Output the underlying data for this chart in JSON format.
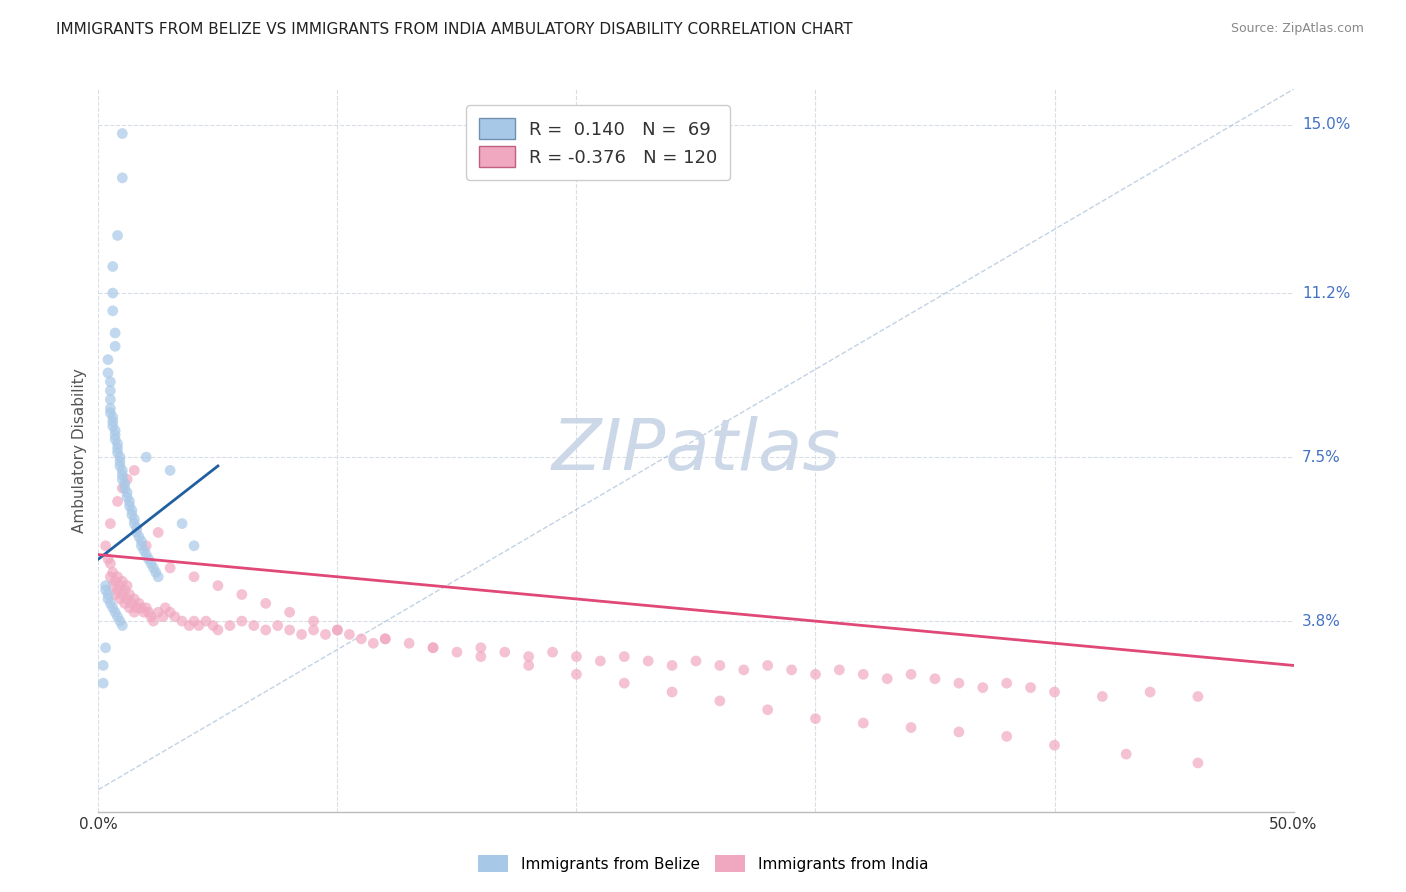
{
  "title": "IMMIGRANTS FROM BELIZE VS IMMIGRANTS FROM INDIA AMBULATORY DISABILITY CORRELATION CHART",
  "source": "Source: ZipAtlas.com",
  "ylabel": "Ambulatory Disability",
  "ytick_labels": [
    "15.0%",
    "11.2%",
    "7.5%",
    "3.8%"
  ],
  "ytick_values": [
    0.15,
    0.112,
    0.075,
    0.038
  ],
  "xlim": [
    0.0,
    0.5
  ],
  "ylim": [
    -0.005,
    0.158
  ],
  "belize_R": 0.14,
  "belize_N": 69,
  "india_R": -0.376,
  "india_N": 120,
  "belize_color": "#a8c8e8",
  "india_color": "#f0a8c0",
  "belize_line_color": "#2060a0",
  "india_line_color": "#e04878",
  "dashed_line_color": "#a8c0d8",
  "background_color": "#ffffff",
  "grid_color": "#d8dde8",
  "watermark_color": "#ccd8e8",
  "belize_scatter_x": [
    0.01,
    0.01,
    0.008,
    0.006,
    0.006,
    0.006,
    0.007,
    0.007,
    0.004,
    0.004,
    0.005,
    0.005,
    0.005,
    0.005,
    0.005,
    0.006,
    0.006,
    0.006,
    0.007,
    0.007,
    0.007,
    0.008,
    0.008,
    0.008,
    0.009,
    0.009,
    0.009,
    0.01,
    0.01,
    0.01,
    0.011,
    0.011,
    0.012,
    0.012,
    0.013,
    0.013,
    0.014,
    0.014,
    0.015,
    0.015,
    0.016,
    0.016,
    0.017,
    0.018,
    0.018,
    0.019,
    0.02,
    0.021,
    0.022,
    0.023,
    0.024,
    0.025,
    0.003,
    0.003,
    0.004,
    0.004,
    0.005,
    0.006,
    0.007,
    0.008,
    0.009,
    0.01,
    0.02,
    0.03,
    0.002,
    0.002,
    0.003,
    0.035,
    0.04
  ],
  "belize_scatter_y": [
    0.148,
    0.138,
    0.125,
    0.118,
    0.112,
    0.108,
    0.103,
    0.1,
    0.097,
    0.094,
    0.092,
    0.09,
    0.088,
    0.086,
    0.085,
    0.084,
    0.083,
    0.082,
    0.081,
    0.08,
    0.079,
    0.078,
    0.077,
    0.076,
    0.075,
    0.074,
    0.073,
    0.072,
    0.071,
    0.07,
    0.069,
    0.068,
    0.067,
    0.066,
    0.065,
    0.064,
    0.063,
    0.062,
    0.061,
    0.06,
    0.059,
    0.058,
    0.057,
    0.056,
    0.055,
    0.054,
    0.053,
    0.052,
    0.051,
    0.05,
    0.049,
    0.048,
    0.046,
    0.045,
    0.044,
    0.043,
    0.042,
    0.041,
    0.04,
    0.039,
    0.038,
    0.037,
    0.075,
    0.072,
    0.028,
    0.024,
    0.032,
    0.06,
    0.055
  ],
  "india_scatter_x": [
    0.003,
    0.004,
    0.005,
    0.005,
    0.006,
    0.006,
    0.007,
    0.007,
    0.008,
    0.008,
    0.009,
    0.009,
    0.01,
    0.01,
    0.011,
    0.011,
    0.012,
    0.012,
    0.013,
    0.013,
    0.014,
    0.015,
    0.015,
    0.016,
    0.017,
    0.018,
    0.019,
    0.02,
    0.021,
    0.022,
    0.023,
    0.025,
    0.027,
    0.028,
    0.03,
    0.032,
    0.035,
    0.038,
    0.04,
    0.042,
    0.045,
    0.048,
    0.05,
    0.055,
    0.06,
    0.065,
    0.07,
    0.075,
    0.08,
    0.085,
    0.09,
    0.095,
    0.1,
    0.105,
    0.11,
    0.115,
    0.12,
    0.13,
    0.14,
    0.15,
    0.16,
    0.17,
    0.18,
    0.19,
    0.2,
    0.21,
    0.22,
    0.23,
    0.24,
    0.25,
    0.26,
    0.27,
    0.28,
    0.29,
    0.3,
    0.31,
    0.32,
    0.33,
    0.34,
    0.35,
    0.36,
    0.37,
    0.38,
    0.39,
    0.4,
    0.42,
    0.44,
    0.46,
    0.005,
    0.008,
    0.01,
    0.012,
    0.015,
    0.02,
    0.025,
    0.03,
    0.04,
    0.05,
    0.06,
    0.07,
    0.08,
    0.09,
    0.1,
    0.12,
    0.14,
    0.16,
    0.18,
    0.2,
    0.22,
    0.24,
    0.26,
    0.28,
    0.3,
    0.32,
    0.34,
    0.36,
    0.38,
    0.4,
    0.43,
    0.46
  ],
  "india_scatter_y": [
    0.055,
    0.052,
    0.051,
    0.048,
    0.049,
    0.046,
    0.047,
    0.044,
    0.048,
    0.045,
    0.046,
    0.043,
    0.047,
    0.044,
    0.045,
    0.042,
    0.046,
    0.043,
    0.044,
    0.041,
    0.042,
    0.043,
    0.04,
    0.041,
    0.042,
    0.041,
    0.04,
    0.041,
    0.04,
    0.039,
    0.038,
    0.04,
    0.039,
    0.041,
    0.04,
    0.039,
    0.038,
    0.037,
    0.038,
    0.037,
    0.038,
    0.037,
    0.036,
    0.037,
    0.038,
    0.037,
    0.036,
    0.037,
    0.036,
    0.035,
    0.036,
    0.035,
    0.036,
    0.035,
    0.034,
    0.033,
    0.034,
    0.033,
    0.032,
    0.031,
    0.032,
    0.031,
    0.03,
    0.031,
    0.03,
    0.029,
    0.03,
    0.029,
    0.028,
    0.029,
    0.028,
    0.027,
    0.028,
    0.027,
    0.026,
    0.027,
    0.026,
    0.025,
    0.026,
    0.025,
    0.024,
    0.023,
    0.024,
    0.023,
    0.022,
    0.021,
    0.022,
    0.021,
    0.06,
    0.065,
    0.068,
    0.07,
    0.072,
    0.055,
    0.058,
    0.05,
    0.048,
    0.046,
    0.044,
    0.042,
    0.04,
    0.038,
    0.036,
    0.034,
    0.032,
    0.03,
    0.028,
    0.026,
    0.024,
    0.022,
    0.02,
    0.018,
    0.016,
    0.015,
    0.014,
    0.013,
    0.012,
    0.01,
    0.008,
    0.006
  ],
  "belize_trendline_x": [
    0.0,
    0.05
  ],
  "belize_trendline_y": [
    0.052,
    0.073
  ],
  "india_trendline_x": [
    0.0,
    0.5
  ],
  "india_trendline_y": [
    0.053,
    0.028
  ],
  "dashed_line_x": [
    0.0,
    0.5
  ],
  "dashed_line_y": [
    0.0,
    0.158
  ],
  "xtick_positions": [
    0.0,
    0.1,
    0.2,
    0.3,
    0.4,
    0.5
  ]
}
